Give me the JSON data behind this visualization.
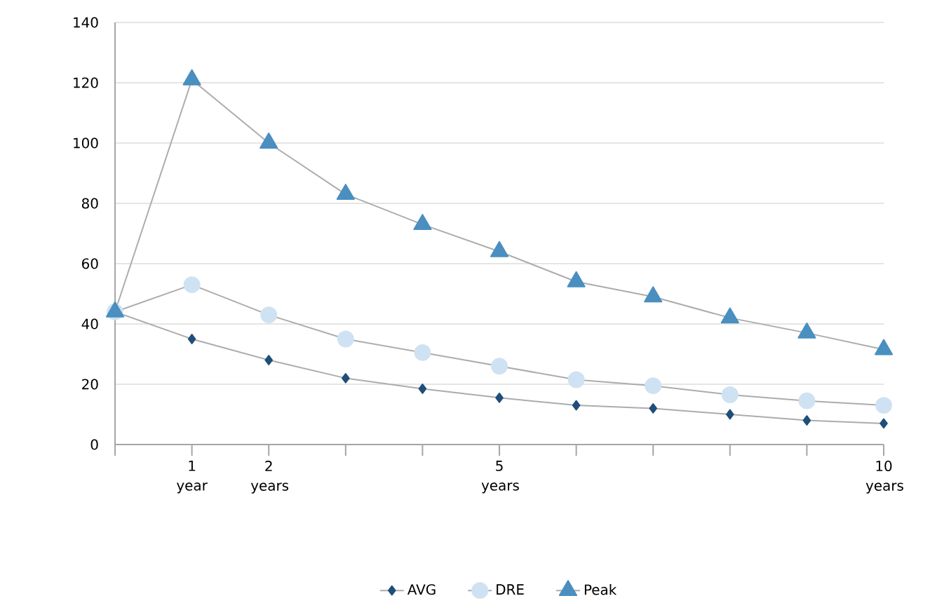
{
  "chart_data": {
    "type": "line",
    "categories": [
      null,
      "1 year",
      "2 years",
      null,
      null,
      "5 years",
      null,
      null,
      null,
      null,
      "10 years"
    ],
    "series": [
      {
        "name": "AVG",
        "color": "#1f4e79",
        "marker": "diamond",
        "values": [
          44,
          35,
          28,
          22,
          18.5,
          15.5,
          13,
          12,
          10,
          8,
          7
        ]
      },
      {
        "name": "DRE",
        "color": "#cfe2f3",
        "marker": "circle",
        "values": [
          44,
          53,
          43,
          35,
          30.5,
          26,
          21.5,
          19.5,
          16.5,
          14.5,
          13
        ]
      },
      {
        "name": "Peak",
        "color": "#4a8fc0",
        "marker": "triangle",
        "values": [
          44,
          121,
          100,
          83,
          73,
          64,
          54,
          49,
          42,
          37,
          31.5
        ]
      }
    ],
    "ylim": [
      0,
      140
    ],
    "yticks": [
      0,
      20,
      40,
      60,
      80,
      100,
      120,
      140
    ],
    "grid": "y",
    "legend": "bottom",
    "line_style": "solid"
  }
}
